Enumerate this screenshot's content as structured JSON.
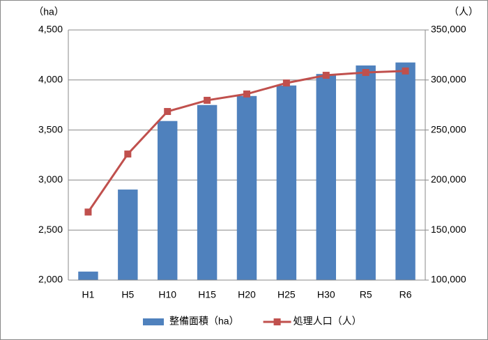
{
  "chart_data": {
    "type": "bar-line",
    "y_label": "（ha）",
    "y2_label": "（人）",
    "categories": [
      "H1",
      "H5",
      "H10",
      "H15",
      "H20",
      "H25",
      "H30",
      "R5",
      "R6"
    ],
    "series": [
      {
        "name": "整備面積（ha）",
        "type": "bar",
        "color": "#4f81bd",
        "values": [
          2085,
          2905,
          3590,
          3750,
          3840,
          3945,
          4060,
          4145,
          4175
        ]
      },
      {
        "name": "処理人口（人）",
        "type": "line",
        "axis": "y2",
        "color": "#c0504d",
        "values": [
          168000,
          226000,
          268500,
          279700,
          286000,
          297000,
          304700,
          307500,
          309000
        ]
      }
    ],
    "ylim": [
      2000,
      4500
    ],
    "yticks": [
      {
        "value": 2000,
        "label": "2,000"
      },
      {
        "value": 2500,
        "label": "2,500"
      },
      {
        "value": 3000,
        "label": "3,000"
      },
      {
        "value": 3500,
        "label": "3,500"
      },
      {
        "value": 4000,
        "label": "4,000"
      },
      {
        "value": 4500,
        "label": "4,500"
      }
    ],
    "y2lim": [
      100000,
      350000
    ],
    "y2ticks": [
      {
        "value": 100000,
        "label": "100,000"
      },
      {
        "value": 150000,
        "label": "150,000"
      },
      {
        "value": 200000,
        "label": "200,000"
      },
      {
        "value": 250000,
        "label": "250,000"
      },
      {
        "value": 300000,
        "label": "300,000"
      },
      {
        "value": 350000,
        "label": "350,000"
      }
    ],
    "grid": true,
    "legend": "bottom"
  }
}
